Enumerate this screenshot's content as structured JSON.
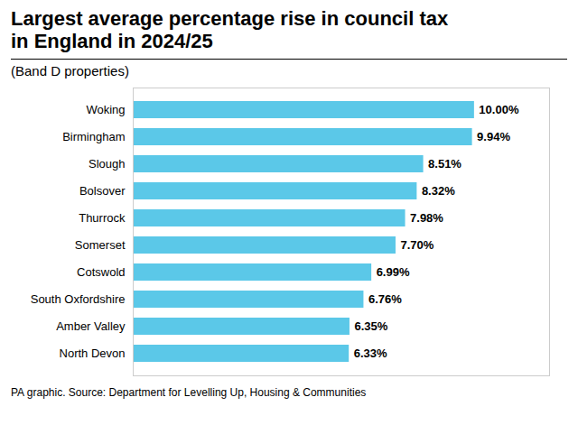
{
  "chart_data": {
    "type": "bar",
    "orientation": "horizontal",
    "title": "Largest average percentage rise in council tax\nin England in 2024/25",
    "subtitle": "(Band D properties)",
    "caption": "PA graphic. Source: Department for Levelling Up, Housing & Communities",
    "categories": [
      "North Devon",
      "Amber Valley",
      "South Oxfordshire",
      "Cotswold",
      "Somerset",
      "Thurrock",
      "Bolsover",
      "Slough",
      "Birmingham",
      "Woking"
    ],
    "values": [
      6.33,
      6.35,
      6.76,
      6.99,
      7.7,
      7.98,
      8.32,
      8.51,
      9.94,
      10.0
    ],
    "value_labels": [
      "6.33%",
      "6.35%",
      "6.76%",
      "6.99%",
      "7.70%",
      "7.98%",
      "8.32%",
      "8.51%",
      "9.94%",
      "10.00%"
    ],
    "color": "#5bc8e8",
    "xlim": [
      0,
      12.2
    ],
    "data_labels": true,
    "tick_labels": "y"
  }
}
